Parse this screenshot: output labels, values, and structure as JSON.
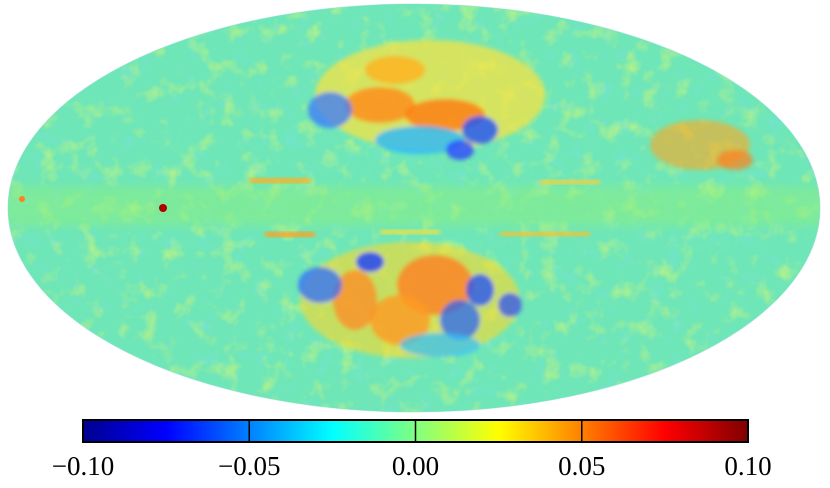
{
  "colorbar": {
    "colormap": [
      "#00008f",
      "#0000ff",
      "#0080ff",
      "#00ffff",
      "#80ff80",
      "#ffff00",
      "#ff8000",
      "#ff0000",
      "#800000"
    ],
    "map_base_color": "#6fe6b8",
    "ticks": [
      {
        "value": -0.1,
        "label": "−0.10"
      },
      {
        "value": -0.05,
        "label": "−0.05"
      },
      {
        "value": 0.0,
        "label": "0.00"
      },
      {
        "value": 0.05,
        "label": "0.05"
      },
      {
        "value": 0.1,
        "label": "0.10"
      }
    ],
    "range": [
      -0.1,
      0.1
    ]
  }
}
